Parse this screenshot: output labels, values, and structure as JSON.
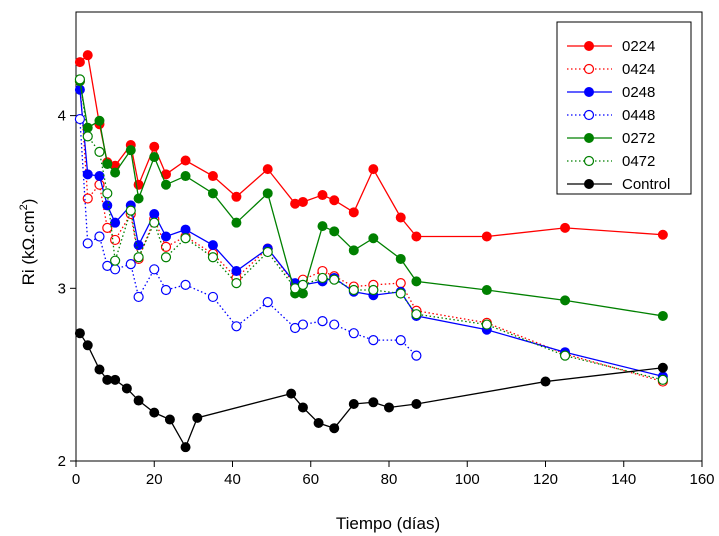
{
  "chart_data": {
    "type": "line",
    "title": "",
    "xlabel": "Tiempo (días)",
    "ylabel_main": "Ri (kΩ.cm",
    "ylabel_sup": "2",
    "ylabel_close": ")",
    "xlim": [
      0,
      160
    ],
    "ylim": [
      2,
      4.6
    ],
    "xticks": [
      0,
      20,
      40,
      60,
      80,
      100,
      120,
      140,
      160
    ],
    "yticks": [
      2,
      3,
      4
    ],
    "grid": false,
    "legend_position": "top-right",
    "series": [
      {
        "name": "0224",
        "color": "#ff0000",
        "dash": "solid",
        "marker": "filled",
        "x": [
          1,
          3,
          6,
          8,
          10,
          14,
          16,
          20,
          23,
          28,
          35,
          41,
          49,
          56,
          58,
          63,
          66,
          71,
          76,
          83,
          87,
          105,
          125,
          150
        ],
        "y": [
          4.31,
          4.35,
          3.95,
          3.73,
          3.71,
          3.83,
          3.6,
          3.82,
          3.66,
          3.74,
          3.65,
          3.53,
          3.69,
          3.49,
          3.5,
          3.54,
          3.51,
          3.44,
          3.69,
          3.41,
          3.3,
          3.3,
          3.35,
          3.31
        ]
      },
      {
        "name": "0424",
        "color": "#ff0000",
        "dash": "dotted",
        "marker": "open",
        "x": [
          1,
          3,
          6,
          8,
          10,
          14,
          16,
          20,
          23,
          28,
          35,
          41,
          49,
          56,
          58,
          63,
          66,
          71,
          76,
          83,
          87,
          105,
          125,
          150
        ],
        "y": [
          4.2,
          3.52,
          3.6,
          3.35,
          3.28,
          3.43,
          3.17,
          3.4,
          3.24,
          3.3,
          3.2,
          3.06,
          3.23,
          3.02,
          3.05,
          3.1,
          3.07,
          3.01,
          3.02,
          3.03,
          2.87,
          2.8,
          2.62,
          2.46
        ]
      },
      {
        "name": "0248",
        "color": "#0000ff",
        "dash": "solid",
        "marker": "filled",
        "x": [
          1,
          3,
          6,
          8,
          10,
          14,
          16,
          20,
          23,
          28,
          35,
          41,
          49,
          56,
          58,
          63,
          66,
          71,
          76,
          83,
          87,
          105,
          125,
          150
        ],
        "y": [
          4.15,
          3.66,
          3.65,
          3.48,
          3.38,
          3.48,
          3.25,
          3.43,
          3.3,
          3.34,
          3.25,
          3.1,
          3.23,
          3.03,
          3.02,
          3.04,
          3.06,
          2.98,
          2.96,
          2.98,
          2.84,
          2.76,
          2.63,
          2.49
        ]
      },
      {
        "name": "0448",
        "color": "#0000ff",
        "dash": "dotted",
        "marker": "open",
        "x": [
          1,
          3,
          6,
          8,
          10,
          14,
          16,
          20,
          23,
          28,
          35,
          41,
          49,
          56,
          58,
          63,
          66,
          71,
          76,
          83,
          87
        ],
        "y": [
          3.98,
          3.26,
          3.3,
          3.13,
          3.11,
          3.14,
          2.95,
          3.11,
          2.99,
          3.02,
          2.95,
          2.78,
          2.92,
          2.77,
          2.79,
          2.81,
          2.79,
          2.74,
          2.7,
          2.7,
          2.61
        ]
      },
      {
        "name": "0272",
        "color": "#008000",
        "dash": "solid",
        "marker": "filled",
        "x": [
          1,
          3,
          6,
          8,
          10,
          14,
          16,
          20,
          23,
          28,
          35,
          41,
          49,
          56,
          58,
          63,
          66,
          71,
          76,
          83,
          87,
          105,
          125,
          150
        ],
        "y": [
          4.2,
          3.93,
          3.97,
          3.72,
          3.67,
          3.8,
          3.52,
          3.76,
          3.6,
          3.65,
          3.55,
          3.38,
          3.55,
          2.97,
          2.97,
          3.36,
          3.33,
          3.22,
          3.29,
          3.17,
          3.04,
          2.99,
          2.93,
          2.84
        ]
      },
      {
        "name": "0472",
        "color": "#008000",
        "dash": "dotted",
        "marker": "open",
        "x": [
          1,
          3,
          6,
          8,
          10,
          14,
          16,
          20,
          23,
          28,
          35,
          41,
          49,
          56,
          58,
          63,
          66,
          71,
          76,
          83,
          87,
          105,
          125,
          150
        ],
        "y": [
          4.21,
          3.88,
          3.79,
          3.55,
          3.16,
          3.45,
          3.18,
          3.38,
          3.18,
          3.29,
          3.18,
          3.03,
          3.21,
          3.0,
          3.02,
          3.06,
          3.05,
          2.99,
          2.99,
          2.97,
          2.85,
          2.79,
          2.61,
          2.47
        ]
      },
      {
        "name": "Control",
        "color": "#000000",
        "dash": "solid",
        "marker": "filled",
        "x": [
          1,
          3,
          6,
          8,
          10,
          13,
          16,
          20,
          24,
          28,
          31,
          55,
          58,
          62,
          66,
          71,
          76,
          80,
          87,
          120,
          150
        ],
        "y": [
          2.74,
          2.67,
          2.53,
          2.47,
          2.47,
          2.42,
          2.35,
          2.28,
          2.24,
          2.08,
          2.25,
          2.39,
          2.31,
          2.22,
          2.19,
          2.33,
          2.34,
          2.31,
          2.33,
          2.46,
          2.54
        ]
      }
    ]
  }
}
